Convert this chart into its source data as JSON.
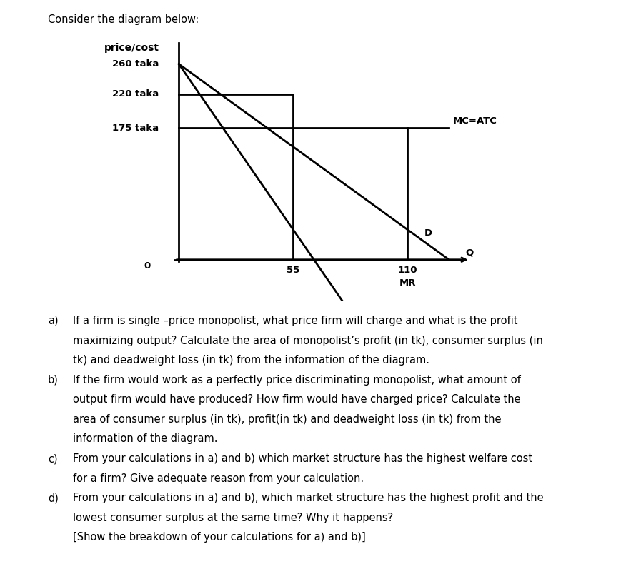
{
  "title_text": "Consider the diagram below:",
  "ylabel": "price/cost",
  "price_260": 260,
  "price_220": 220,
  "price_175": 175,
  "q_55": 55,
  "q_110": 110,
  "q_max": 130,
  "p_max": 260,
  "mc_label": "MC=ATC",
  "d_label": "D",
  "mr_label": "MR",
  "q_label": "Q",
  "background_color": "#ffffff",
  "line_color": "#000000",
  "lw": 2.0,
  "q_lines_a": [
    {
      "label": "a)",
      "text": "If a firm is single –price monopolist, what price firm will charge and what is the profit"
    },
    {
      "label": "",
      "text": "maximizing output? Calculate the area of monopolist’s profit (in tk), consumer surplus (in"
    },
    {
      "label": "",
      "text": "tk) and deadweight loss (in tk) from the information of the diagram."
    }
  ],
  "q_lines_b": [
    {
      "label": "b)",
      "text": "If the firm would work as a perfectly price discriminating monopolist, what amount of"
    },
    {
      "label": "",
      "text": "output firm would have produced? How firm would have charged price? Calculate the"
    },
    {
      "label": "",
      "text": "area of consumer surplus (in tk), profit(in tk) and deadweight loss (in tk) from the"
    },
    {
      "label": "",
      "text": "information of the diagram."
    }
  ],
  "q_lines_c": [
    {
      "label": "c)",
      "text": "From your calculations in a) and b) which market structure has the highest welfare cost"
    },
    {
      "label": "",
      "text": "for a firm? Give adequate reason from your calculation."
    }
  ],
  "q_lines_d": [
    {
      "label": "d)",
      "text": "From your calculations in a) and b), which market structure has the highest profit and the"
    },
    {
      "label": "",
      "text": "lowest consumer surplus at the same time? Why it happens?"
    },
    {
      "label": "",
      "text": "[Show the breakdown of your calculations for a) and b)]"
    }
  ]
}
